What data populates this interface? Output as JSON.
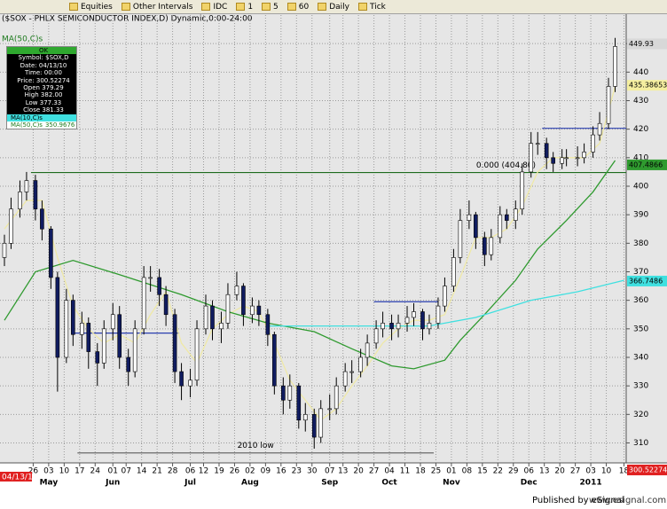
{
  "toolbar": {
    "items": [
      "Equities",
      "Other Intervals",
      "IDC",
      "1",
      "5",
      "60",
      "Daily",
      "Tick"
    ]
  },
  "info_box": {
    "header": "OK",
    "rows": [
      "Symbol: $SOX,D",
      "Date: 04/13/10",
      "Time: 00:00",
      "Price: 300.52274",
      "Open 379.29",
      "High 382.00",
      "Low 377.33",
      "Close 381.33"
    ],
    "ma50_value": "350.9676"
  },
  "footer": {
    "publisher": "Published by eSignal",
    "url": "www.esignal.com"
  },
  "chart_data": {
    "type": "candlestick",
    "title": "($SOX - PHLX SEMICONDUCTOR INDEX,D) Dynamic,0:00-24:00",
    "cursor_date": "04/13/10",
    "up_color": "#ffffff",
    "down_color": "#101c60",
    "wick_color": "#000000",
    "grid": true,
    "x": [
      "04/13/10",
      "04/16/10",
      "04/20/10",
      "04/23/10",
      "04/27/10",
      "04/30/10",
      "05/04/10",
      "05/07/10",
      "05/11/10",
      "05/14/10",
      "05/18/10",
      "05/21/10",
      "05/25/10",
      "05/28/10",
      "06/01/10",
      "06/04/10",
      "06/08/10",
      "06/11/10",
      "06/15/10",
      "06/18/10",
      "06/22/10",
      "06/25/10",
      "06/29/10",
      "07/02/10",
      "07/06/10",
      "07/09/10",
      "07/13/10",
      "07/16/10",
      "07/20/10",
      "07/23/10",
      "07/27/10",
      "07/30/10",
      "08/03/10",
      "08/06/10",
      "08/10/10",
      "08/13/10",
      "08/17/10",
      "08/20/10",
      "08/24/10",
      "08/27/10",
      "08/31/10",
      "09/03/10",
      "09/07/10",
      "09/10/10",
      "09/14/10",
      "09/17/10",
      "09/21/10",
      "09/24/10",
      "09/28/10",
      "10/01/10",
      "10/05/10",
      "10/08/10",
      "10/12/10",
      "10/15/10",
      "10/19/10",
      "10/22/10",
      "10/26/10",
      "10/29/10",
      "11/02/10",
      "11/05/10",
      "11/09/10",
      "11/12/10",
      "11/16/10",
      "11/19/10",
      "11/23/10",
      "11/26/10",
      "11/30/10",
      "12/03/10",
      "12/07/10",
      "12/10/10",
      "12/14/10",
      "12/17/10",
      "12/21/10",
      "12/23/10",
      "12/28/10",
      "12/31/10",
      "01/04/11",
      "01/07/11",
      "01/11/11",
      "01/14/11"
    ],
    "open": [
      375,
      380,
      392,
      398,
      402,
      392,
      385,
      368,
      340,
      360,
      348,
      352,
      342,
      338,
      350,
      355,
      340,
      335,
      350,
      368,
      368,
      362,
      355,
      335,
      330,
      332,
      350,
      358,
      350,
      352,
      362,
      365,
      355,
      358,
      355,
      348,
      330,
      325,
      330,
      318,
      320,
      312,
      322,
      322,
      330,
      335,
      335,
      340,
      345,
      350,
      352,
      350,
      352,
      354,
      356,
      350,
      352,
      358,
      365,
      375,
      388,
      390,
      382,
      376,
      382,
      390,
      388,
      392,
      405,
      415,
      415,
      410,
      408,
      410,
      410,
      410,
      412,
      418,
      422,
      435
    ],
    "high": [
      383,
      396,
      402,
      405,
      404,
      395,
      386,
      370,
      364,
      362,
      356,
      354,
      345,
      353,
      359,
      358,
      343,
      353,
      372,
      372,
      371,
      365,
      357,
      338,
      336,
      353,
      362,
      360,
      356,
      366,
      370,
      366,
      361,
      360,
      357,
      349,
      333,
      334,
      331,
      324,
      322,
      325,
      327,
      333,
      338,
      339,
      343,
      348,
      353,
      356,
      355,
      355,
      358,
      359,
      357,
      355,
      361,
      368,
      378,
      392,
      395,
      391,
      384,
      385,
      393,
      392,
      395,
      408,
      419,
      419,
      417,
      412,
      413,
      413,
      414,
      415,
      421,
      426,
      438,
      452
    ],
    "low": [
      372,
      378,
      389,
      395,
      388,
      381,
      364,
      328,
      338,
      344,
      343,
      336,
      330,
      336,
      346,
      336,
      330,
      333,
      348,
      363,
      358,
      351,
      331,
      325,
      326,
      330,
      348,
      346,
      345,
      350,
      360,
      351,
      352,
      351,
      344,
      327,
      320,
      322,
      315,
      314,
      308,
      310,
      318,
      320,
      328,
      331,
      333,
      337,
      343,
      347,
      346,
      347,
      349,
      351,
      346,
      348,
      350,
      356,
      363,
      373,
      385,
      378,
      372,
      374,
      380,
      385,
      385,
      390,
      403,
      411,
      406,
      405,
      406,
      407,
      407,
      408,
      410,
      416,
      420,
      433
    ],
    "close": [
      380,
      392,
      398,
      402,
      392,
      385,
      368,
      340,
      360,
      348,
      352,
      342,
      338,
      350,
      355,
      340,
      335,
      350,
      368,
      368,
      362,
      355,
      335,
      330,
      332,
      350,
      358,
      350,
      352,
      362,
      365,
      355,
      358,
      355,
      348,
      330,
      325,
      330,
      318,
      320,
      312,
      322,
      322,
      330,
      335,
      335,
      340,
      345,
      350,
      352,
      350,
      352,
      354,
      356,
      350,
      352,
      358,
      365,
      375,
      388,
      390,
      382,
      376,
      382,
      390,
      388,
      392,
      405,
      415,
      415,
      410,
      408,
      410,
      410,
      410,
      412,
      418,
      422,
      435,
      449
    ],
    "series": [
      {
        "name": "MA(10,C)s",
        "color": "#efe9a6",
        "x": [
          "04/13/10",
          "04/23/10",
          "04/30/10",
          "05/07/10",
          "05/14/10",
          "05/21/10",
          "05/28/10",
          "06/04/10",
          "06/11/10",
          "06/18/10",
          "06/25/10",
          "07/02/10",
          "07/09/10",
          "07/16/10",
          "07/23/10",
          "07/30/10",
          "08/06/10",
          "08/13/10",
          "08/20/10",
          "08/27/10",
          "09/03/10",
          "09/10/10",
          "09/17/10",
          "09/24/10",
          "10/01/10",
          "10/08/10",
          "10/15/10",
          "10/22/10",
          "10/29/10",
          "11/05/10",
          "11/12/10",
          "11/19/10",
          "11/26/10",
          "12/03/10",
          "12/10/10",
          "12/17/10",
          "12/23/10",
          "12/31/10",
          "01/07/11",
          "01/14/11"
        ],
        "values": [
          385,
          395,
          395,
          375,
          358,
          350,
          345,
          348,
          345,
          355,
          363,
          345,
          338,
          350,
          355,
          358,
          356,
          345,
          332,
          325,
          318,
          322,
          330,
          337,
          345,
          350,
          353,
          353,
          355,
          368,
          382,
          382,
          385,
          393,
          405,
          410,
          410,
          410,
          415,
          435
        ]
      },
      {
        "name": "MA(50,C)s",
        "color": "#2f9a2f",
        "x": [
          "04/13/10",
          "04/27/10",
          "05/14/10",
          "06/04/10",
          "07/02/10",
          "07/23/10",
          "08/10/10",
          "08/31/10",
          "09/17/10",
          "10/05/10",
          "10/15/10",
          "10/29/10",
          "11/05/10",
          "11/16/10",
          "11/30/10",
          "12/10/10",
          "12/23/10",
          "01/04/11",
          "01/14/11"
        ],
        "values": [
          353,
          370,
          374,
          369,
          362,
          356,
          352,
          349,
          343,
          337,
          336,
          339,
          346,
          355,
          367,
          378,
          388,
          398,
          409
        ]
      },
      {
        "color": "#3fe0e0",
        "x": [
          "08/10/10",
          "10/22/10",
          "11/12/10",
          "12/07/10",
          "12/28/10",
          "01/18/11"
        ],
        "values": [
          351,
          351,
          354,
          360,
          363,
          367
        ]
      }
    ],
    "hlines": [
      {
        "value": 404.8,
        "color": "#1d6b1d",
        "x": [
          "04/25/10",
          "01/19/11"
        ],
        "label": "0.000 (404.80)"
      },
      {
        "value": 306.5,
        "color": "#6a6a6a",
        "x": [
          "05/16/10",
          "10/24/10"
        ],
        "label": "2010 low"
      },
      {
        "value": 348.5,
        "color": "#2b3fb0",
        "x": [
          "05/14/10",
          "07/01/10"
        ]
      },
      {
        "value": 359.5,
        "color": "#2b3fb0",
        "x": [
          "09/27/10",
          "10/26/10"
        ]
      },
      {
        "value": 420.3,
        "color": "#2b3fb0",
        "x": [
          "12/12/10",
          "01/19/11"
        ]
      }
    ],
    "last_values": [
      {
        "value": 449.93,
        "color": "#d8d8d8"
      },
      {
        "value": 435.386538,
        "color": "#f5efa0"
      },
      {
        "value": 407.4866,
        "color": "#2f9a2f"
      },
      {
        "value": 366.7486,
        "color": "#3fe0e0"
      },
      {
        "value": 300.52274,
        "color": "#e02020"
      }
    ],
    "xlim": [
      "04/11/10",
      "01/19/11"
    ],
    "ylim": [
      303,
      460
    ],
    "yticks": [
      310,
      320,
      330,
      340,
      350,
      360,
      370,
      380,
      390,
      400,
      410,
      420,
      430,
      440,
      450
    ],
    "xticks": [
      {
        "value": "04/26/10",
        "label": "26"
      },
      {
        "value": "05/03/10",
        "label": "03"
      },
      {
        "value": "05/10/10",
        "label": "10"
      },
      {
        "value": "05/17/10",
        "label": "17"
      },
      {
        "value": "05/24/10",
        "label": "24"
      },
      {
        "value": "06/01/10",
        "label": "01"
      },
      {
        "value": "06/07/10",
        "label": "07"
      },
      {
        "value": "06/14/10",
        "label": "14"
      },
      {
        "value": "06/21/10",
        "label": "21"
      },
      {
        "value": "06/28/10",
        "label": "28"
      },
      {
        "value": "07/06/10",
        "label": "06"
      },
      {
        "value": "07/12/10",
        "label": "12"
      },
      {
        "value": "07/19/10",
        "label": "19"
      },
      {
        "value": "07/26/10",
        "label": "26"
      },
      {
        "value": "08/02/10",
        "label": "02"
      },
      {
        "value": "08/09/10",
        "label": "09"
      },
      {
        "value": "08/16/10",
        "label": "16"
      },
      {
        "value": "08/23/10",
        "label": "23"
      },
      {
        "value": "08/30/10",
        "label": "30"
      },
      {
        "value": "09/07/10",
        "label": "07"
      },
      {
        "value": "09/13/10",
        "label": "13"
      },
      {
        "value": "09/20/10",
        "label": "20"
      },
      {
        "value": "09/27/10",
        "label": "27"
      },
      {
        "value": "10/04/10",
        "label": "04"
      },
      {
        "value": "10/11/10",
        "label": "11"
      },
      {
        "value": "10/18/10",
        "label": "18"
      },
      {
        "value": "10/25/10",
        "label": "25"
      },
      {
        "value": "11/01/10",
        "label": "01"
      },
      {
        "value": "11/08/10",
        "label": "08"
      },
      {
        "value": "11/15/10",
        "label": "15"
      },
      {
        "value": "11/22/10",
        "label": "22"
      },
      {
        "value": "11/29/10",
        "label": "29"
      },
      {
        "value": "12/06/10",
        "label": "06"
      },
      {
        "value": "12/13/10",
        "label": "13"
      },
      {
        "value": "12/20/10",
        "label": "20"
      },
      {
        "value": "12/27/10",
        "label": "27"
      },
      {
        "value": "01/03/11",
        "label": "03"
      },
      {
        "value": "01/10/11",
        "label": "10"
      },
      {
        "value": "01/18/11",
        "label": "18"
      }
    ],
    "month_labels": [
      {
        "value": "05/03/10",
        "label": "May"
      },
      {
        "value": "06/01/10",
        "label": "Jun"
      },
      {
        "value": "07/06/10",
        "label": "Jul"
      },
      {
        "value": "08/02/10",
        "label": "Aug"
      },
      {
        "value": "09/07/10",
        "label": "Sep"
      },
      {
        "value": "10/04/10",
        "label": "Oct"
      },
      {
        "value": "11/01/10",
        "label": "Nov"
      },
      {
        "value": "12/06/10",
        "label": "Dec"
      },
      {
        "value": "01/03/11",
        "label": "2011"
      }
    ]
  }
}
